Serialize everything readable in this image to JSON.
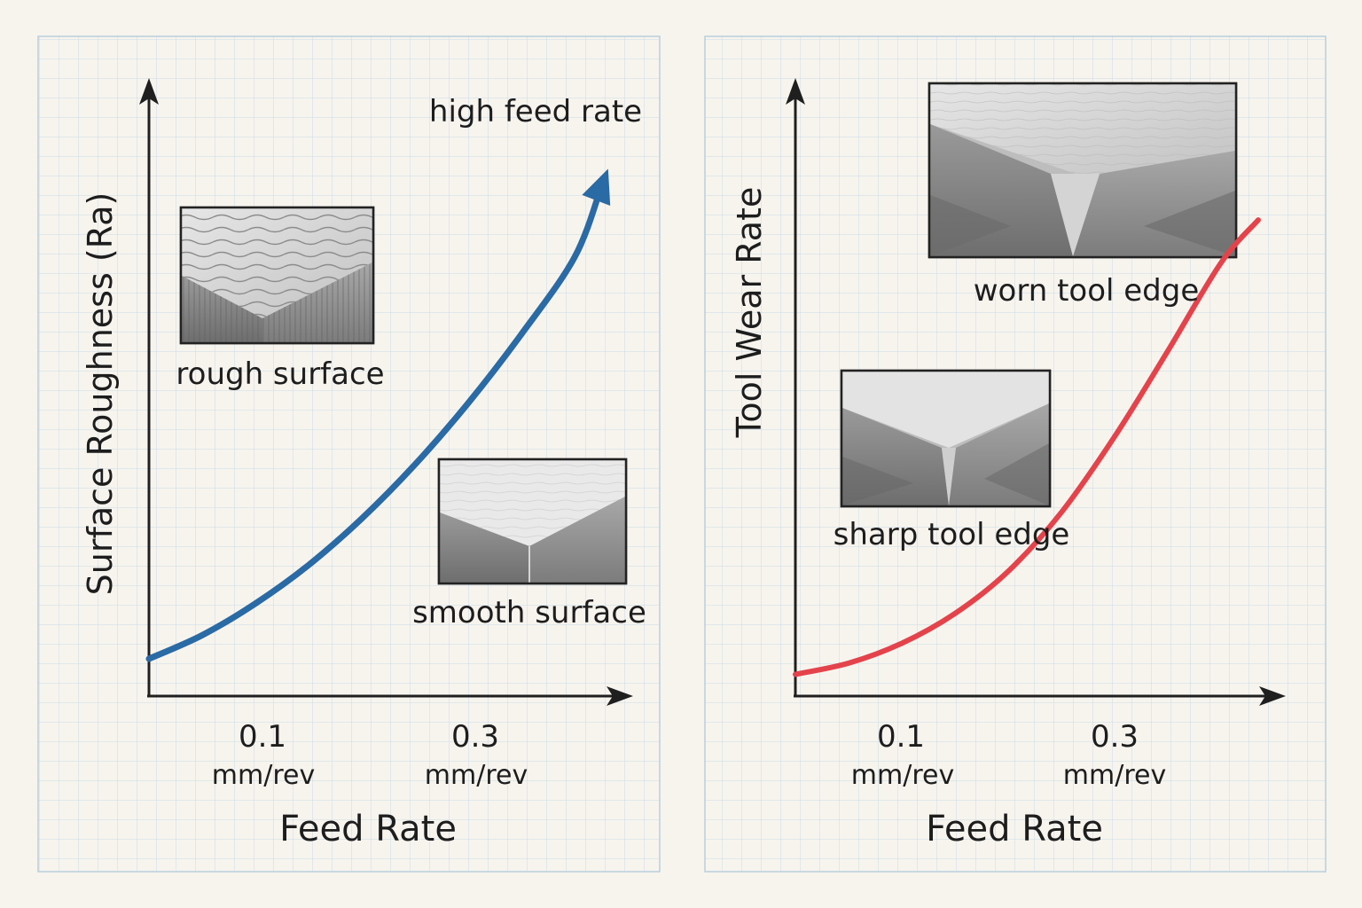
{
  "chart_data": [
    {
      "type": "line",
      "title": "",
      "xlabel": "Feed Rate",
      "ylabel": "Surface Roughness (Ra)",
      "x_ticks": [
        {
          "value": 0.1,
          "label": "0.1",
          "unit": "mm/rev"
        },
        {
          "value": 0.3,
          "label": "0.3",
          "unit": "mm/rev"
        }
      ],
      "xlim": [
        0,
        0.45
      ],
      "ylim": [
        0,
        10
      ],
      "grid": true,
      "series": [
        {
          "name": "Surface Roughness",
          "color": "#2a6aa5",
          "arrow_end": true,
          "x": [
            0,
            0.05,
            0.1,
            0.15,
            0.2,
            0.25,
            0.3,
            0.35,
            0.4,
            0.425
          ],
          "y": [
            0.6,
            0.98,
            1.49,
            2.11,
            2.86,
            3.73,
            4.72,
            5.83,
            7.07,
            8.2
          ]
        }
      ],
      "annotations": [
        {
          "text": "high feed rate"
        },
        {
          "text": "rough surface",
          "image": "rough-surface-texture"
        },
        {
          "text": "smooth surface",
          "image": "smooth-surface-texture"
        }
      ]
    },
    {
      "type": "line",
      "title": "",
      "xlabel": "Feed Rate",
      "ylabel": "Tool Wear Rate",
      "x_ticks": [
        {
          "value": 0.1,
          "label": "0.1",
          "unit": "mm/rev"
        },
        {
          "value": 0.3,
          "label": "0.3",
          "unit": "mm/rev"
        }
      ],
      "xlim": [
        0,
        0.45
      ],
      "ylim": [
        0,
        10
      ],
      "grid": true,
      "series": [
        {
          "name": "Tool Wear Rate",
          "color": "#e4434b",
          "arrow_end": false,
          "x": [
            0,
            0.05,
            0.1,
            0.15,
            0.2,
            0.25,
            0.3,
            0.35,
            0.4,
            0.435
          ],
          "y": [
            0.35,
            0.53,
            0.85,
            1.33,
            2.01,
            2.96,
            4.18,
            5.56,
            6.98,
            7.67
          ]
        }
      ],
      "annotations": [
        {
          "text": "worn tool edge",
          "image": "worn-tool-edge"
        },
        {
          "text": "sharp tool edge",
          "image": "sharp-tool-edge"
        }
      ]
    }
  ]
}
